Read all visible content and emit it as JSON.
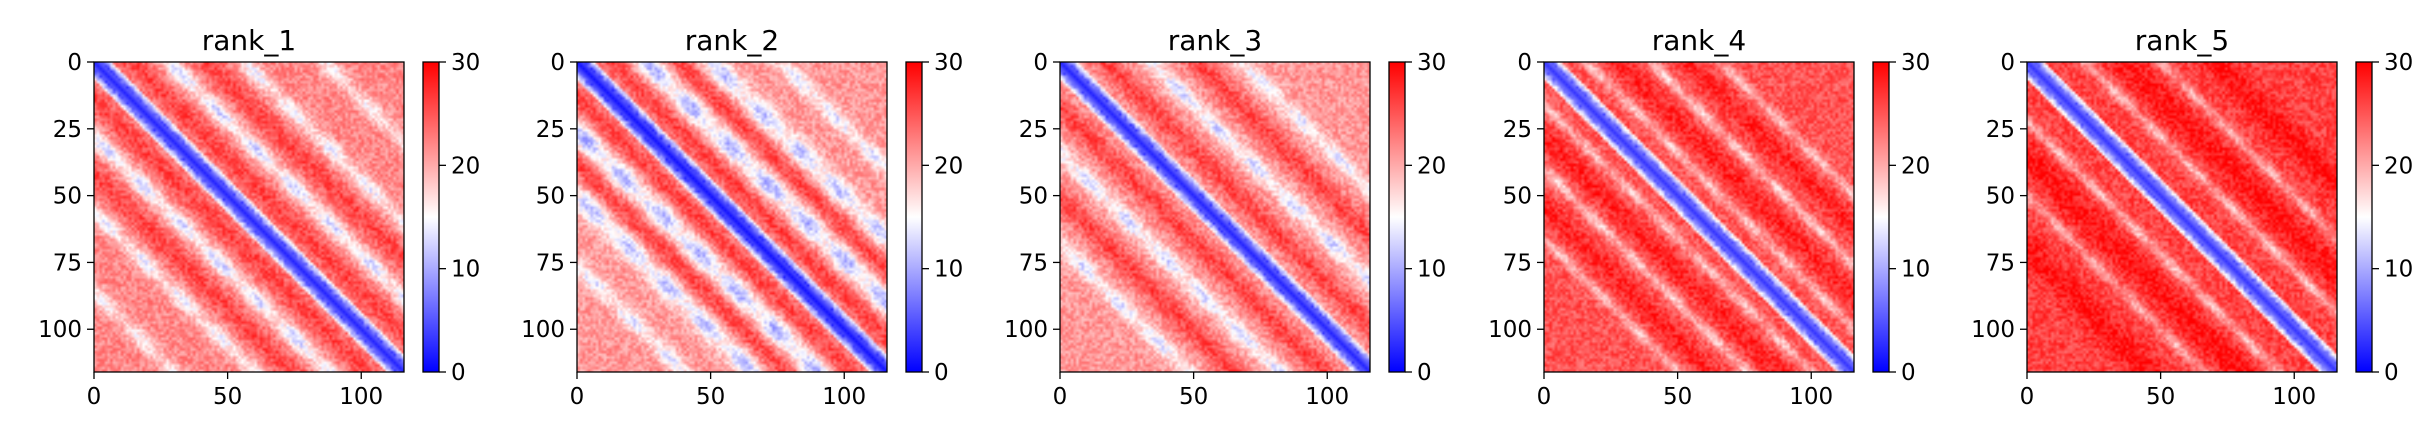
{
  "figure": {
    "colormap": "bwr",
    "colormap_stops": [
      "#0000ff",
      "#ffffff",
      "#ff0000"
    ]
  },
  "chart_data": [
    {
      "type": "heatmap",
      "title": "rank_1",
      "n": 116,
      "xlim": [
        0,
        116
      ],
      "ylim": [
        116,
        0
      ],
      "x_ticks": [
        0,
        50,
        100
      ],
      "x_tick_labels": [
        "0",
        "50",
        "100"
      ],
      "y_ticks": [
        0,
        25,
        50,
        75,
        100
      ],
      "y_tick_labels": [
        "0",
        "25",
        "50",
        "75",
        "100"
      ],
      "colorbar": {
        "range": [
          0,
          30
        ],
        "ticks": [
          0,
          10,
          20,
          30
        ],
        "tick_labels": [
          "0",
          "10",
          "20",
          "30"
        ]
      },
      "diagonal_value": 2,
      "background_value": 22,
      "off_diagonal_stripes": [
        {
          "offset": 28,
          "value": 12,
          "width": 3
        },
        {
          "offset": 56,
          "value": 14,
          "width": 3
        },
        {
          "offset": 86,
          "value": 15,
          "width": 3
        }
      ],
      "high_stripes": [
        {
          "offset": 14,
          "value": 26,
          "width": 4
        },
        {
          "offset": 42,
          "value": 26,
          "width": 4
        }
      ]
    },
    {
      "type": "heatmap",
      "title": "rank_2",
      "n": 116,
      "xlim": [
        0,
        116
      ],
      "ylim": [
        116,
        0
      ],
      "x_ticks": [
        0,
        50,
        100
      ],
      "x_tick_labels": [
        "0",
        "50",
        "100"
      ],
      "y_ticks": [
        0,
        25,
        50,
        75,
        100
      ],
      "y_tick_labels": [
        "0",
        "25",
        "50",
        "75",
        "100"
      ],
      "colorbar": {
        "range": [
          0,
          30
        ],
        "ticks": [
          0,
          10,
          20,
          30
        ],
        "tick_labels": [
          "0",
          "10",
          "20",
          "30"
        ]
      },
      "diagonal_value": 1,
      "background_value": 21,
      "off_diagonal_stripes": [
        {
          "offset": 26,
          "value": 10,
          "width": 4
        },
        {
          "offset": 50,
          "value": 11,
          "width": 4
        },
        {
          "offset": 76,
          "value": 13,
          "width": 3
        }
      ],
      "high_stripes": [
        {
          "offset": 13,
          "value": 26,
          "width": 4
        },
        {
          "offset": 38,
          "value": 26,
          "width": 4
        }
      ]
    },
    {
      "type": "heatmap",
      "title": "rank_3",
      "n": 116,
      "xlim": [
        0,
        116
      ],
      "ylim": [
        116,
        0
      ],
      "x_ticks": [
        0,
        50,
        100
      ],
      "x_tick_labels": [
        "0",
        "50",
        "100"
      ],
      "y_ticks": [
        0,
        25,
        50,
        75,
        100
      ],
      "y_tick_labels": [
        "0",
        "25",
        "50",
        "75",
        "100"
      ],
      "colorbar": {
        "range": [
          0,
          30
        ],
        "ticks": [
          0,
          10,
          20,
          30
        ],
        "tick_labels": [
          "0",
          "10",
          "20",
          "30"
        ]
      },
      "diagonal_value": 2,
      "background_value": 21,
      "off_diagonal_stripes": [
        {
          "offset": 34,
          "value": 12,
          "width": 3
        },
        {
          "offset": 68,
          "value": 13,
          "width": 3
        }
      ],
      "high_stripes": [
        {
          "offset": 17,
          "value": 26,
          "width": 4
        },
        {
          "offset": 51,
          "value": 26,
          "width": 4
        }
      ]
    },
    {
      "type": "heatmap",
      "title": "rank_4",
      "n": 116,
      "xlim": [
        0,
        116
      ],
      "ylim": [
        116,
        0
      ],
      "x_ticks": [
        0,
        50,
        100
      ],
      "x_tick_labels": [
        "0",
        "50",
        "100"
      ],
      "y_ticks": [
        0,
        25,
        50,
        75,
        100
      ],
      "y_tick_labels": [
        "0",
        "25",
        "50",
        "75",
        "100"
      ],
      "colorbar": {
        "range": [
          0,
          30
        ],
        "ticks": [
          0,
          10,
          20,
          30
        ],
        "tick_labels": [
          "0",
          "10",
          "20",
          "30"
        ]
      },
      "diagonal_value": 3,
      "background_value": 25,
      "off_diagonal_stripes": [
        {
          "offset": 16,
          "value": 18,
          "width": 2
        },
        {
          "offset": 40,
          "value": 17,
          "width": 2
        },
        {
          "offset": 66,
          "value": 18,
          "width": 2
        }
      ],
      "high_stripes": [
        {
          "offset": 28,
          "value": 28,
          "width": 4
        },
        {
          "offset": 54,
          "value": 28,
          "width": 4
        }
      ]
    },
    {
      "type": "heatmap",
      "title": "rank_5",
      "n": 116,
      "xlim": [
        0,
        116
      ],
      "ylim": [
        116,
        0
      ],
      "x_ticks": [
        0,
        50,
        100
      ],
      "x_tick_labels": [
        "0",
        "50",
        "100"
      ],
      "y_ticks": [
        0,
        25,
        50,
        75,
        100
      ],
      "y_tick_labels": [
        "0",
        "25",
        "50",
        "75",
        "100"
      ],
      "colorbar": {
        "range": [
          0,
          30
        ],
        "ticks": [
          0,
          10,
          20,
          30
        ],
        "tick_labels": [
          "0",
          "10",
          "20",
          "30"
        ]
      },
      "diagonal_value": 3,
      "background_value": 26,
      "off_diagonal_stripes": [
        {
          "offset": 22,
          "value": 18,
          "width": 2
        },
        {
          "offset": 50,
          "value": 19,
          "width": 2
        }
      ],
      "high_stripes": [
        {
          "offset": 36,
          "value": 29,
          "width": 5
        },
        {
          "offset": 70,
          "value": 29,
          "width": 5
        }
      ]
    }
  ]
}
